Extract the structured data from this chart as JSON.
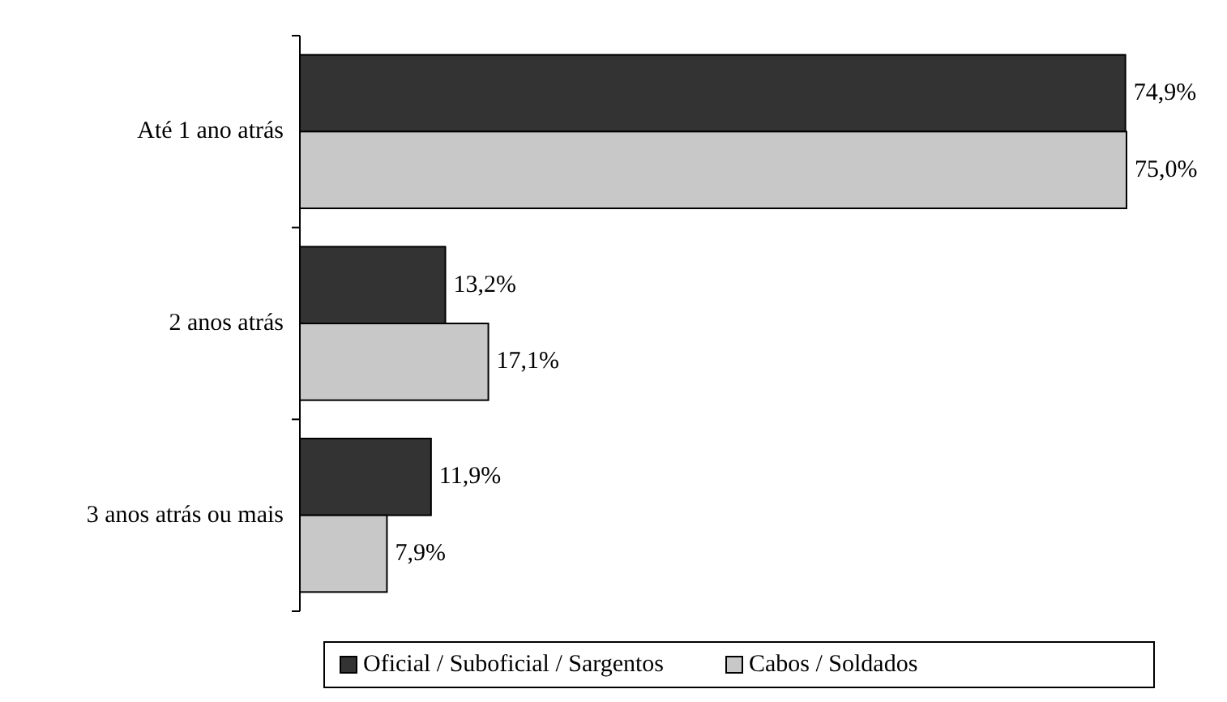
{
  "chart_data": {
    "type": "bar",
    "orientation": "horizontal",
    "categories": [
      "Até 1 ano atrás",
      "2 anos atrás",
      "3 anos atrás ou mais"
    ],
    "series": [
      {
        "name": "Oficial /  Suboficial / Sargentos",
        "color": "#333333",
        "values": [
          74.9,
          13.2,
          11.9
        ],
        "value_labels": [
          "74,9%",
          "13,2%",
          "11,9%"
        ]
      },
      {
        "name": "Cabos / Soldados",
        "color": "#c8c8c8",
        "values": [
          75.0,
          17.1,
          7.9
        ],
        "value_labels": [
          "75,0%",
          "17,1%",
          "7,9%"
        ]
      }
    ],
    "legend": "bottom"
  }
}
